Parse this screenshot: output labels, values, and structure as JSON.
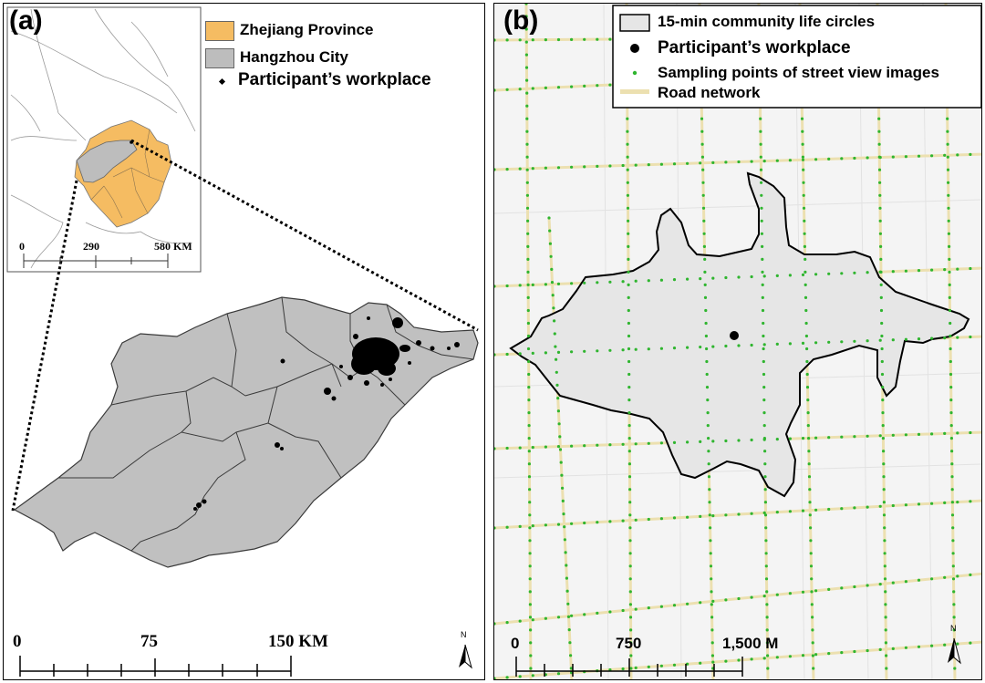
{
  "panel_a": {
    "label": "(a)",
    "legend": [
      {
        "text": "Zhejiang Province",
        "color": "#f5bc62"
      },
      {
        "text": "Hangzhou City",
        "color": "#bdbdbd"
      },
      {
        "text": "Participant’s workplace",
        "color": "#000000"
      }
    ],
    "inset_scale": {
      "ticks": [
        "0",
        "290",
        "580 KM"
      ]
    },
    "main_scale": {
      "ticks": [
        "0",
        "75",
        "150 KM"
      ]
    },
    "north_label": "N",
    "colors": {
      "province": "#f5bc62",
      "city": "#c0c0c0",
      "points": "#000000"
    }
  },
  "panel_b": {
    "label": "(b)",
    "legend": [
      {
        "text": "15-min community life circles"
      },
      {
        "text": "Participant’s workplace"
      },
      {
        "text": "Sampling points of street view images"
      },
      {
        "text": "Road network"
      }
    ],
    "scale": {
      "ticks": [
        "0",
        "750",
        "1,500 M"
      ]
    },
    "north_label": "N",
    "colors": {
      "circle_fill": "#e6e6e6",
      "sampling_points": "#2fb52f",
      "roads": "#efe3b8"
    }
  }
}
